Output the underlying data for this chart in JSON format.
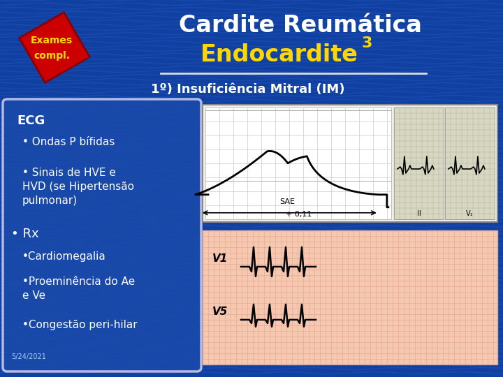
{
  "bg_color": "#1040a0",
  "title_line1": "Cardite Reumática",
  "title_line2": "Endocardite",
  "title_superscript": "3",
  "title_color": "#ffffff",
  "endocardite_color": "#ffd700",
  "subtitle": "1º) Insuficiência Mitral (IM)",
  "subtitle_color": "#ffffff",
  "badge_text_line1": "Exames",
  "badge_text_line2": "compl.",
  "badge_color": "#cc0000",
  "badge_text_color": "#ffdd00",
  "box_bg": "#1a4aaa",
  "box_edge": "#ccccee",
  "text_color": "#ffffff",
  "ecg_label": "ECG",
  "bullet1": "• Ondas P bífidas",
  "bullet2a": "• Sinais de HVE e",
  "bullet2b": "HVD (se Hipertensão",
  "bullet2c": "pulmonar)",
  "rx_label": "• Rx",
  "bullet3": "•Cardiomegalia",
  "bullet4a": "•Proeminência do Ae",
  "bullet4b": "e Ve",
  "bullet5": "•Congestão peri-hilar",
  "date_text": "5/24/2021",
  "separator_color": "#dddddd",
  "wave_color": "#2a5acc",
  "ecg_bg": "#f0f0e8",
  "ecg_left_bg": "#ffffff",
  "ecg_right_bg": "#d8d8c8",
  "ecg_grid": "#cccccc",
  "bot_ecg_bg": "#f5c8b0",
  "bot_ecg_grid": "#e8a090"
}
